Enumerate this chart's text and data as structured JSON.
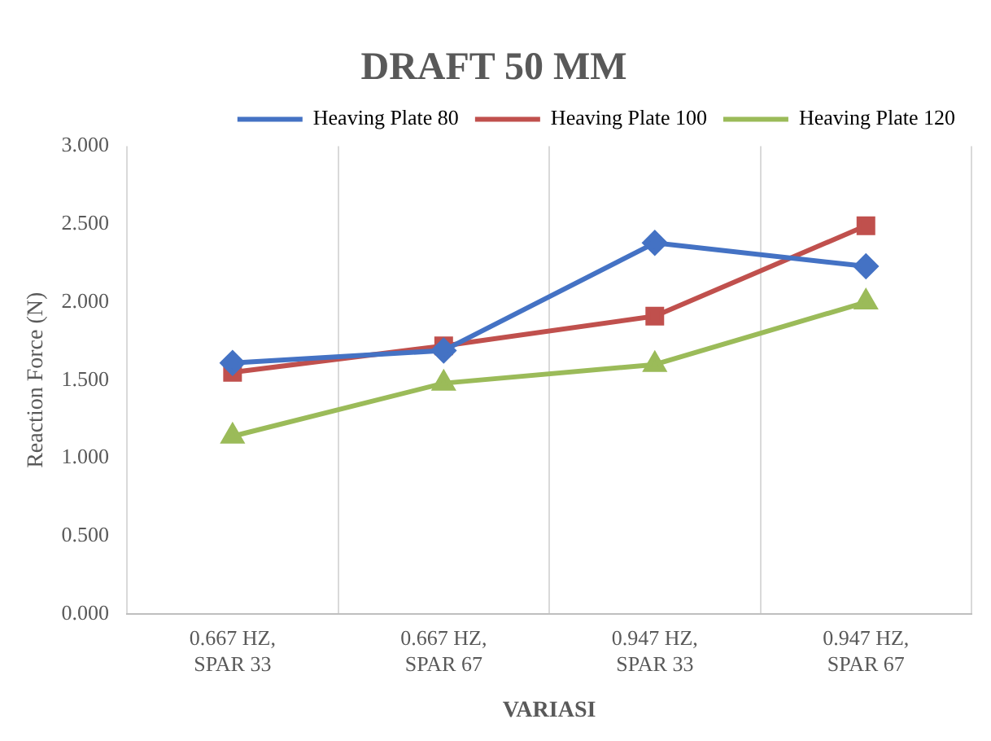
{
  "chart_data": {
    "type": "line",
    "title": "DRAFT 50 MM",
    "xlabel": "VARIASI",
    "ylabel": "Reaction Force (N)",
    "categories": [
      "0.667 HZ, SPAR 33",
      "0.667 HZ, SPAR 67",
      "0.947 HZ, SPAR 33",
      "0.947 HZ, SPAR 67"
    ],
    "series": [
      {
        "name": "Heaving Plate 80",
        "color": "#4472c4",
        "marker": "diamond",
        "values": [
          1.61,
          1.69,
          2.38,
          2.23
        ]
      },
      {
        "name": "Heaving Plate 100",
        "color": "#c0504d",
        "marker": "square",
        "values": [
          1.55,
          1.72,
          1.91,
          2.49
        ]
      },
      {
        "name": "Heaving Plate 120",
        "color": "#9bbb59",
        "marker": "triangle",
        "values": [
          1.14,
          1.48,
          1.6,
          2.0
        ]
      }
    ],
    "ylim": [
      0,
      3
    ],
    "yticks": [
      {
        "value": 0,
        "label": "0.000"
      },
      {
        "value": 0.5,
        "label": "0.500"
      },
      {
        "value": 1,
        "label": "1.000"
      },
      {
        "value": 1.5,
        "label": "1.500"
      },
      {
        "value": 2,
        "label": "2.000"
      },
      {
        "value": 2.5,
        "label": "2.500"
      },
      {
        "value": 3,
        "label": "3.000"
      }
    ],
    "grid": "x",
    "legend": "top right",
    "line_style": "solid"
  }
}
